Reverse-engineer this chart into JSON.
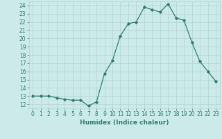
{
  "x": [
    0,
    1,
    2,
    3,
    4,
    5,
    6,
    7,
    8,
    9,
    10,
    11,
    12,
    13,
    14,
    15,
    16,
    17,
    18,
    19,
    20,
    21,
    22,
    23
  ],
  "y": [
    13.0,
    13.0,
    13.0,
    12.8,
    12.6,
    12.5,
    12.5,
    11.8,
    12.3,
    15.7,
    17.3,
    20.3,
    21.8,
    22.0,
    23.8,
    23.5,
    23.2,
    24.2,
    22.5,
    22.2,
    19.5,
    17.2,
    16.0,
    14.8
  ],
  "xlabel": "Humidex (Indice chaleur)",
  "line_color": "#2e7d6e",
  "bg_color": "#cceaea",
  "grid_color": "#aed4d4",
  "text_color": "#2e7d6e",
  "ylim": [
    11.5,
    24.5
  ],
  "xlim": [
    -0.5,
    23.5
  ],
  "yticks": [
    12,
    13,
    14,
    15,
    16,
    17,
    18,
    19,
    20,
    21,
    22,
    23,
    24
  ],
  "xticks": [
    0,
    1,
    2,
    3,
    4,
    5,
    6,
    7,
    8,
    9,
    10,
    11,
    12,
    13,
    14,
    15,
    16,
    17,
    18,
    19,
    20,
    21,
    22,
    23
  ],
  "marker": "D",
  "marker_size": 1.8,
  "linewidth": 0.9,
  "tick_fontsize": 5.5,
  "label_fontsize": 6.5
}
